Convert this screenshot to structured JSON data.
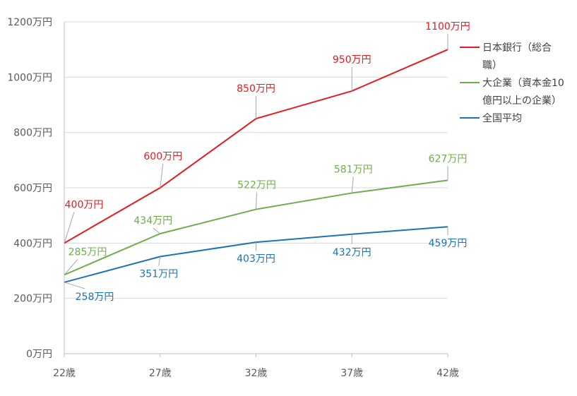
{
  "chart_data": {
    "type": "line",
    "categories": [
      "22歳",
      "27歳",
      "32歳",
      "37歳",
      "42歳"
    ],
    "ylim": [
      0,
      1200
    ],
    "yticks": [
      0,
      200,
      400,
      600,
      800,
      1000,
      1200
    ],
    "ytick_labels": [
      "0万円",
      "200万円",
      "400万円",
      "600万円",
      "800万円",
      "1000万円",
      "1200万円"
    ],
    "grid": true,
    "legend_position": "right",
    "series": [
      {
        "name_lines": [
          "日本銀行（総合",
          "職）"
        ],
        "color": "#e8191f",
        "values": [
          400,
          600,
          850,
          950,
          1100
        ],
        "labels": [
          "400万円",
          "600万円",
          "850万円",
          "950万円",
          "1100万円"
        ]
      },
      {
        "name_lines": [
          "大企業（資本金10",
          "億円以上の企業）"
        ],
        "color": "#70ad47",
        "values": [
          285,
          434,
          522,
          581,
          627
        ],
        "labels": [
          "285万円",
          "434万円",
          "522万円",
          "581万円",
          "627万円"
        ]
      },
      {
        "name_lines": [
          "全国平均"
        ],
        "color": "#1a74b4",
        "values": [
          258,
          351,
          403,
          432,
          459
        ],
        "labels": [
          "258万円",
          "351万円",
          "403万円",
          "432万円",
          "459万円"
        ]
      }
    ]
  }
}
